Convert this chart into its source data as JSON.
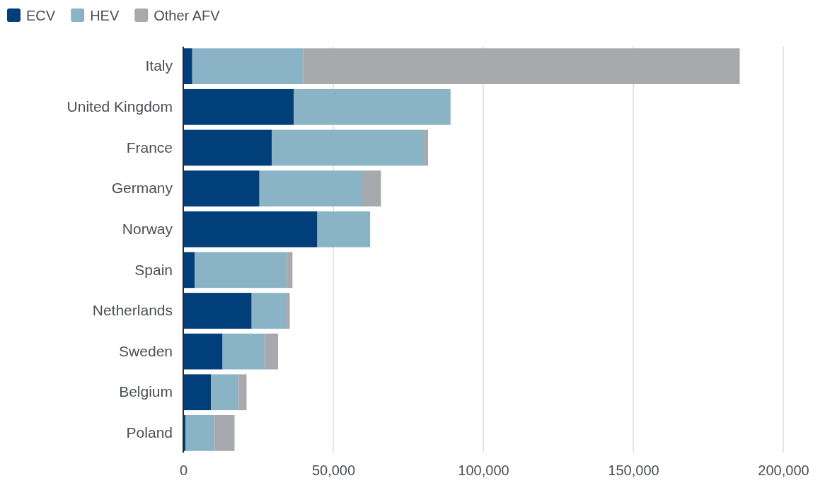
{
  "chart_data": {
    "type": "bar",
    "orientation": "horizontal",
    "stacked": true,
    "categories": [
      "Italy",
      "United Kingdom",
      "France",
      "Germany",
      "Norway",
      "Spain",
      "Netherlands",
      "Sweden",
      "Belgium",
      "Poland"
    ],
    "series": [
      {
        "name": "ECV",
        "color": "#003f7a",
        "values": [
          3000,
          36800,
          29500,
          25400,
          44700,
          3800,
          22800,
          13100,
          9200,
          800
        ]
      },
      {
        "name": "HEV",
        "color": "#8ab4c6",
        "values": [
          37000,
          52300,
          50900,
          34500,
          17600,
          30800,
          11600,
          14200,
          9300,
          9700
        ]
      },
      {
        "name": "Other AFV",
        "color": "#a7a9ac",
        "values": [
          145500,
          0,
          1200,
          6000,
          0,
          1800,
          1100,
          4300,
          2600,
          6600
        ]
      }
    ],
    "xlim": [
      0,
      200000
    ],
    "xticks": [
      {
        "value": 0,
        "label": "0"
      },
      {
        "value": 50000,
        "label": "50,000"
      },
      {
        "value": 100000,
        "label": "100,000"
      },
      {
        "value": 150000,
        "label": "150,000"
      },
      {
        "value": 200000,
        "label": "200,000"
      }
    ],
    "grid": "x",
    "legend": "top left"
  }
}
